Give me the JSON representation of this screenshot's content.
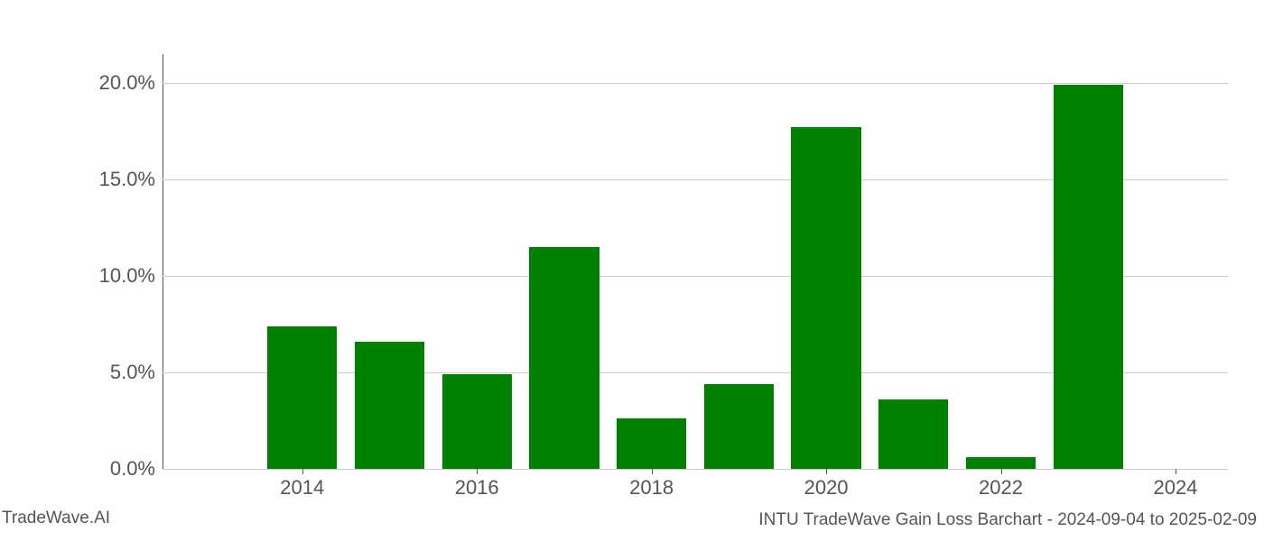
{
  "chart": {
    "type": "bar",
    "background_color": "#ffffff",
    "grid_color": "#cccccc",
    "axis_color": "#555555",
    "text_color": "#555555",
    "tick_fontsize": 22,
    "footer_fontsize": 19,
    "categories": [
      2013,
      2014,
      2015,
      2016,
      2017,
      2018,
      2019,
      2020,
      2021,
      2022,
      2023,
      2024
    ],
    "values": [
      0,
      7.4,
      6.6,
      4.9,
      11.5,
      2.6,
      4.4,
      17.7,
      3.6,
      0.6,
      19.9,
      0
    ],
    "bar_color": "#008000",
    "bar_width": 0.8,
    "ylim": [
      0,
      21.5
    ],
    "ytick_positions": [
      0.0,
      5.0,
      10.0,
      15.0,
      20.0
    ],
    "ytick_labels": [
      "0.0%",
      "5.0%",
      "10.0%",
      "15.0%",
      "20.0%"
    ],
    "xtick_positions": [
      2014,
      2016,
      2018,
      2020,
      2022,
      2024
    ],
    "xtick_labels": [
      "2014",
      "2016",
      "2018",
      "2020",
      "2022",
      "2024"
    ],
    "x_range": [
      2012.4,
      2024.6
    ]
  },
  "footer": {
    "left": "TradeWave.AI",
    "right": "INTU TradeWave Gain Loss Barchart - 2024-09-04 to 2025-02-09"
  }
}
